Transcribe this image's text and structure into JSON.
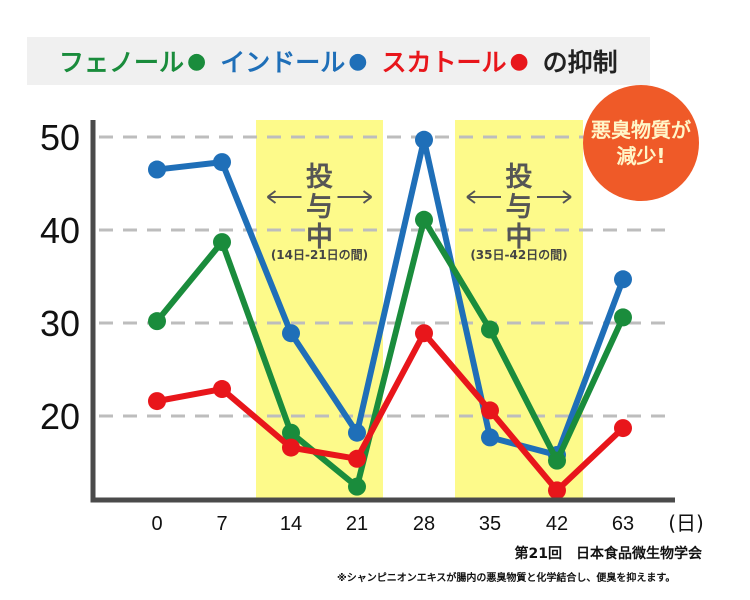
{
  "legend": {
    "items": [
      {
        "label": "フェノール",
        "dot": "●",
        "color": "#1a8c3c"
      },
      {
        "label": "インドール",
        "dot": "●",
        "color": "#1f6fb8"
      },
      {
        "label": "スカトール",
        "dot": "●",
        "color": "#e8161b"
      }
    ],
    "suffix": "の抑制"
  },
  "badge": {
    "line1": "悪臭物質が",
    "line2": "減少!"
  },
  "source": "第21回　日本食品微生物学会",
  "footnote": "※シャンピニオンエキスが腸内の悪臭物質と化学結合し、便臭を抑えます。",
  "chart_data": {
    "type": "line",
    "title": "",
    "xlabel": "",
    "ylabel": "",
    "x_unit_label": "(日)",
    "categories": [
      "0",
      "7",
      "14",
      "21",
      "28",
      "35",
      "42",
      "63"
    ],
    "yticks": [
      20,
      30,
      40,
      50
    ],
    "ylim": [
      11,
      52
    ],
    "grid": true,
    "series": [
      {
        "name": "インドール",
        "color": "#1f6fb8",
        "values": [
          46.5,
          47.3,
          28.9,
          18.2,
          49.7,
          17.7,
          15.8,
          34.7
        ]
      },
      {
        "name": "フェノール",
        "color": "#1a8c3c",
        "values": [
          30.2,
          38.7,
          18.2,
          12.4,
          41.1,
          29.3,
          15.2,
          30.6
        ]
      },
      {
        "name": "スカトール",
        "color": "#e8161b",
        "values": [
          21.6,
          22.9,
          16.6,
          15.4,
          28.9,
          20.6,
          12.0,
          18.7
        ]
      }
    ],
    "annotations": [
      {
        "label": "投与中",
        "range_label": "(14日-21日の間)",
        "from_index": 2,
        "to_index": 3
      },
      {
        "label": "投与中",
        "range_label": "(35日-42日の間)",
        "from_index": 5,
        "to_index": 6
      }
    ],
    "highlight_color": "#fdfa8a"
  }
}
